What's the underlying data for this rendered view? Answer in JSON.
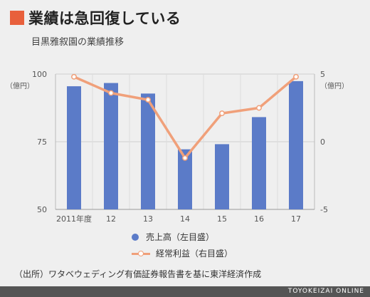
{
  "header": {
    "title": "業績は急回復している",
    "subtitle": "目黒雅叙園の業績推移"
  },
  "chart_data": {
    "type": "bar+line",
    "categories": [
      "2011年度",
      "12",
      "13",
      "14",
      "15",
      "16",
      "17"
    ],
    "series": [
      {
        "name": "売上高（左目盛）",
        "type": "bar",
        "axis": "left",
        "color": "#5b7bc8",
        "values": [
          95.5,
          96.7,
          92.8,
          72.2,
          74.1,
          84.1,
          97.4
        ]
      },
      {
        "name": "経常利益（右目盛）",
        "type": "line",
        "axis": "right",
        "color": "#f0a07a",
        "values": [
          4.8,
          3.6,
          3.1,
          -1.2,
          2.1,
          2.5,
          4.8
        ]
      }
    ],
    "y_left": {
      "ticks": [
        "100",
        "75",
        "50"
      ],
      "range": [
        50,
        100
      ],
      "unit": "（億円）"
    },
    "y_right": {
      "ticks": [
        "5",
        "0",
        "-5"
      ],
      "range": [
        -5,
        5
      ],
      "unit": "（億円）"
    },
    "grid": true
  },
  "source": "（出所）ワタベウェディング有価証券報告書を基に東洋経済作成",
  "brand": "TOYOKEIZAI ONLINE"
}
